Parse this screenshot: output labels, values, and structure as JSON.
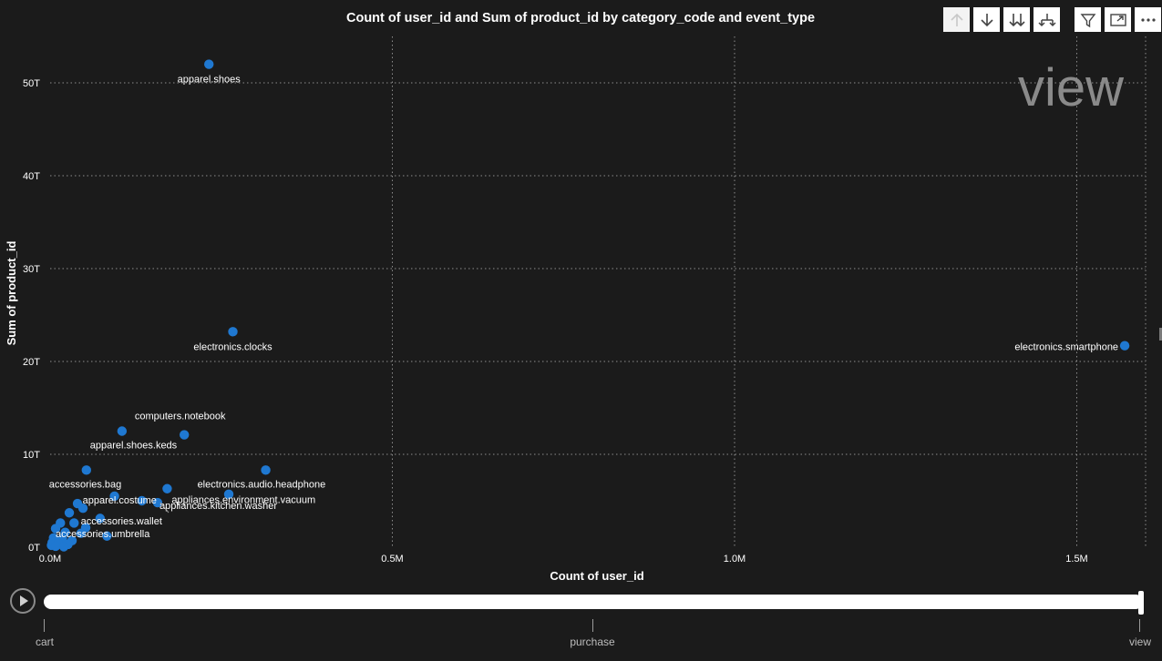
{
  "toolbar": {
    "icons": [
      "arrow-up-icon",
      "arrow-down-icon",
      "double-arrow-down-icon",
      "expand-hierarchy-icon",
      "filter-icon",
      "focus-mode-icon",
      "more-options-icon"
    ]
  },
  "play_axis": {
    "labels": [
      "cart",
      "purchase",
      "view"
    ],
    "current_index": 2
  },
  "colors": {
    "background": "#1b1b1b",
    "point": "#1f78d1",
    "grid": "#8c8c8c",
    "text": "#ffffff"
  },
  "chart_data": {
    "type": "scatter",
    "title": "Count of user_id and Sum of product_id by category_code and event_type",
    "xlabel": "Count of user_id",
    "ylabel": "Sum of product_id",
    "xlim": [
      0,
      1600000
    ],
    "ylim": [
      0,
      55000000000000
    ],
    "x_ticks": [
      0,
      500000,
      1000000,
      1500000
    ],
    "x_tick_labels": [
      "0.0M",
      "0.5M",
      "1.0M",
      "1.5M"
    ],
    "y_ticks": [
      0,
      10000000000000,
      20000000000000,
      30000000000000,
      40000000000000,
      50000000000000
    ],
    "y_tick_labels": [
      "0T",
      "10T",
      "20T",
      "30T",
      "40T",
      "50T"
    ],
    "grid": true,
    "frame_label": "view",
    "points": [
      {
        "label": "apparel.shoes",
        "x": 232000,
        "y": 52000000000000
      },
      {
        "label": "electronics.clocks",
        "x": 267000,
        "y": 23200000000000
      },
      {
        "label": "electronics.smartphone",
        "x": 1570000,
        "y": 21700000000000
      },
      {
        "label": "computers.notebook",
        "x": 105000,
        "y": 12500000000000
      },
      {
        "label": "apparel.shoes.keds",
        "x": 196000,
        "y": 12100000000000
      },
      {
        "label": "accessories.bag",
        "x": 53000,
        "y": 8300000000000
      },
      {
        "label": "electronics.audio.headphone",
        "x": 315000,
        "y": 8300000000000
      },
      {
        "label": "appliances.environment.vacuum",
        "x": 171000,
        "y": 6300000000000
      },
      {
        "label": "appliances.kitchen.washer",
        "x": 261000,
        "y": 5700000000000
      },
      {
        "label": "apparel.costume",
        "x": 94000,
        "y": 5500000000000
      },
      {
        "label": "accessories.wallet",
        "x": 134000,
        "y": 5000000000000
      },
      {
        "label": "accessories.umbrella",
        "x": 40000,
        "y": 4700000000000
      },
      {
        "label": "",
        "x": 157000,
        "y": 4800000000000
      },
      {
        "label": "",
        "x": 48000,
        "y": 4200000000000
      },
      {
        "label": "",
        "x": 28000,
        "y": 3700000000000
      },
      {
        "label": "",
        "x": 73000,
        "y": 3100000000000
      },
      {
        "label": "",
        "x": 15000,
        "y": 2600000000000
      },
      {
        "label": "",
        "x": 35000,
        "y": 2600000000000
      },
      {
        "label": "",
        "x": 52000,
        "y": 2100000000000
      },
      {
        "label": "",
        "x": 8000,
        "y": 2000000000000
      },
      {
        "label": "",
        "x": 22000,
        "y": 1600000000000
      },
      {
        "label": "",
        "x": 45000,
        "y": 1500000000000
      },
      {
        "label": "",
        "x": 83000,
        "y": 1200000000000
      },
      {
        "label": "",
        "x": 5000,
        "y": 1000000000000
      },
      {
        "label": "",
        "x": 18000,
        "y": 900000000000
      },
      {
        "label": "",
        "x": 32000,
        "y": 700000000000
      },
      {
        "label": "",
        "x": 3000,
        "y": 500000000000
      },
      {
        "label": "",
        "x": 12000,
        "y": 400000000000
      },
      {
        "label": "",
        "x": 26000,
        "y": 300000000000
      },
      {
        "label": "",
        "x": 2000,
        "y": 200000000000
      },
      {
        "label": "",
        "x": 8000,
        "y": 100000000000
      },
      {
        "label": "",
        "x": 20000,
        "y": 50000000000
      }
    ]
  }
}
